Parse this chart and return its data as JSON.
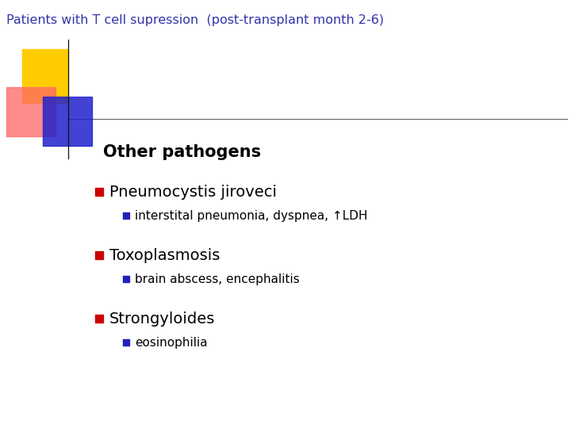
{
  "title": "Patients with T cell supression  (post-transplant month 2-6)",
  "title_color": "#3333AA",
  "title_fontsize": 11.5,
  "background_color": "#FFFFFF",
  "section_heading": "Other pathogens",
  "section_heading_fontsize": 15,
  "section_heading_fontweight": "bold",
  "bullet1_text": "Pneumocystis jiroveci",
  "bullet1_fontsize": 14,
  "sub_bullet1_text": "interstital pneumonia, dyspnea, ↑LDH",
  "sub_bullet1_fontsize": 11,
  "bullet2_text": "Toxoplasmosis",
  "bullet2_fontsize": 14,
  "sub_bullet2_text": "brain abscess, encephalitis",
  "sub_bullet2_fontsize": 11,
  "bullet3_text": "Strongyloides",
  "bullet3_fontsize": 14,
  "sub_bullet3_text": "eosinophilia",
  "sub_bullet3_fontsize": 11,
  "bullet_marker_color": "#CC0000",
  "sub_bullet_marker_color": "#2222BB",
  "logo_yellow_color": "#FFCC00",
  "logo_pink_color": "#FF6666",
  "logo_blue_color": "#2222CC"
}
